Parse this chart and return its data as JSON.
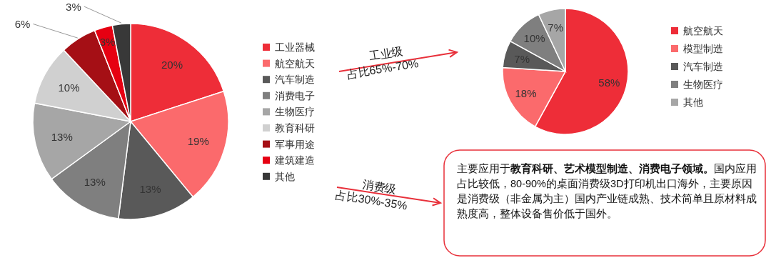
{
  "chart_data": [
    {
      "type": "pie",
      "categories": [
        "工业器械",
        "航空航天",
        "汽车制造",
        "消费电子",
        "生物医疗",
        "教育科研",
        "军事用途",
        "建筑建造",
        "其他"
      ],
      "values": [
        20,
        19,
        13,
        13,
        13,
        10,
        6,
        3,
        3
      ],
      "colors": [
        "#ee2d38",
        "#fb6a6c",
        "#595959",
        "#7f7f7f",
        "#a6a6a6",
        "#d0d0d0",
        "#a50f15",
        "#e60012",
        "#383838"
      ],
      "value_labels": [
        "20%",
        "19%",
        "13%",
        "13%",
        "13%",
        "10%",
        "6%",
        "3%",
        "3%"
      ],
      "legend": "right"
    },
    {
      "type": "pie",
      "categories": [
        "航空航天",
        "模型制造",
        "汽车制造",
        "生物医疗",
        "其他"
      ],
      "values": [
        58,
        18,
        7,
        10,
        7
      ],
      "colors": [
        "#ee2d38",
        "#fb6a6c",
        "#595959",
        "#7f7f7f",
        "#a6a6a6"
      ],
      "value_labels": [
        "58%",
        "18%",
        "7%",
        "10%",
        "7%"
      ],
      "legend": "right"
    },
    {
      "type": "other",
      "annotations": [
        "工业级",
        "占比65%-70%",
        "消费级",
        "占比30%-35%",
        "主要应用于",
        "教育科研、艺术模型制造、消费电子领域。",
        "国内应用占比较低，80-90%的桌面消费级3D打印机出口海外，主要原因是消费级（非金属为主）国内产业链成熟、技术简单且原材料成熟度高，整体设备售价低于国外。"
      ]
    }
  ]
}
